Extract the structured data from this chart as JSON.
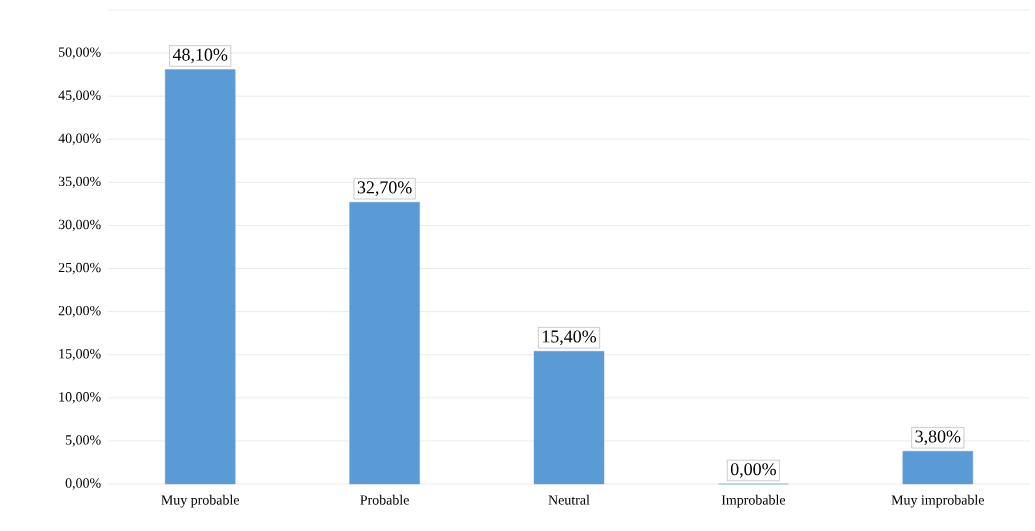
{
  "chart_data": {
    "type": "bar",
    "categories": [
      "Muy probable",
      "Probable",
      "Neutral",
      "Improbable",
      "Muy improbable"
    ],
    "values": [
      48.1,
      32.7,
      15.4,
      0,
      3.8
    ],
    "value_labels": [
      "48,10%",
      "32,70%",
      "15,40%",
      "0,00%",
      "3,80%"
    ],
    "color": "#5b9bd5",
    "ylim": [
      0,
      55
    ],
    "yticks": [
      {
        "value": 0,
        "label": "0,00%"
      },
      {
        "value": 5,
        "label": "5,00%"
      },
      {
        "value": 10,
        "label": "10,00%"
      },
      {
        "value": 15,
        "label": "15,00%"
      },
      {
        "value": 20,
        "label": "20,00%"
      },
      {
        "value": 25,
        "label": "25,00%"
      },
      {
        "value": 30,
        "label": "30,00%"
      },
      {
        "value": 35,
        "label": "35,00%"
      },
      {
        "value": 40,
        "label": "40,00%"
      },
      {
        "value": 45,
        "label": "45,00%"
      },
      {
        "value": 50,
        "label": "50,00%"
      },
      {
        "value": 55,
        "label": null
      }
    ],
    "grid": "y"
  }
}
